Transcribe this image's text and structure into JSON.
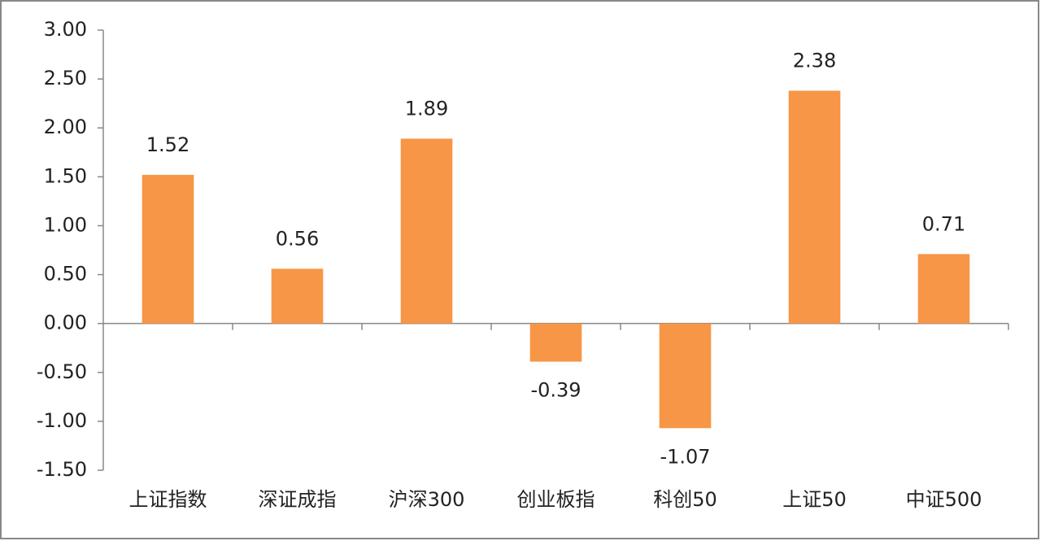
{
  "chart_data": {
    "type": "bar",
    "categories": [
      "上证指数",
      "深证成指",
      "沪深300",
      "创业板指",
      "科创50",
      "上证50",
      "中证500"
    ],
    "values": [
      1.52,
      0.56,
      1.89,
      -0.39,
      -1.07,
      2.38,
      0.71
    ],
    "color": "#f79646",
    "ylim": [
      -1.5,
      3.0
    ],
    "yticks": [
      {
        "value": -1.5,
        "label": "-1.50"
      },
      {
        "value": -1.0,
        "label": "-1.00"
      },
      {
        "value": -0.5,
        "label": "-0.50"
      },
      {
        "value": 0,
        "label": "0.00"
      },
      {
        "value": 0.5,
        "label": "0.50"
      },
      {
        "value": 1.0,
        "label": "1.00"
      },
      {
        "value": 1.5,
        "label": "1.50"
      },
      {
        "value": 2.0,
        "label": "2.00"
      },
      {
        "value": 2.5,
        "label": "2.50"
      },
      {
        "value": 3.0,
        "label": "3.00"
      }
    ],
    "grid": false
  }
}
